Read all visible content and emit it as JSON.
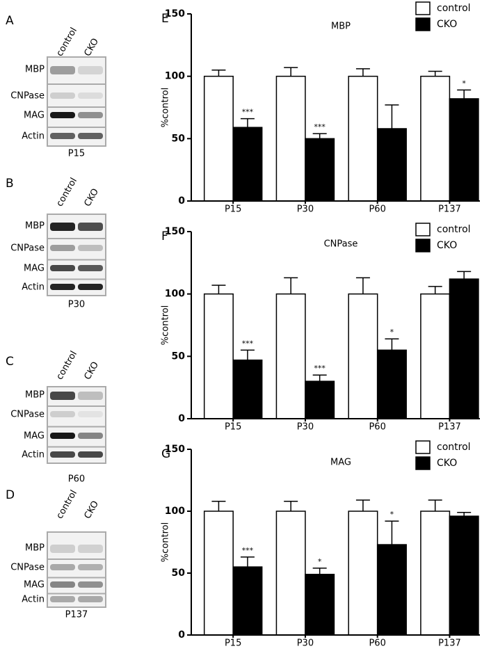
{
  "chart_data": [
    {
      "type": "bar",
      "panel": "E",
      "title": "MBP",
      "y_label": "%control",
      "categories": [
        "P15",
        "P30",
        "P60",
        "P137"
      ],
      "series": [
        {
          "name": "control",
          "color": "#ffffff",
          "values": [
            100,
            100,
            100,
            100
          ],
          "errors": [
            5,
            7,
            6,
            4
          ]
        },
        {
          "name": "CKO",
          "color": "#000000",
          "values": [
            59,
            50,
            58,
            82
          ],
          "errors": [
            7,
            4,
            19,
            7
          ],
          "annotations": [
            "***",
            "***",
            null,
            "*"
          ]
        }
      ],
      "ylim": [
        0,
        150
      ],
      "yticks": [
        0,
        50,
        100,
        150
      ]
    },
    {
      "type": "bar",
      "panel": "F",
      "title": "CNPase",
      "y_label": "%control",
      "categories": [
        "P15",
        "P30",
        "P60",
        "P137"
      ],
      "series": [
        {
          "name": "control",
          "color": "#ffffff",
          "values": [
            100,
            100,
            100,
            100
          ],
          "errors": [
            7,
            13,
            13,
            6
          ]
        },
        {
          "name": "CKO",
          "color": "#000000",
          "values": [
            47,
            30,
            55,
            112
          ],
          "errors": [
            8,
            5,
            9,
            6
          ],
          "annotations": [
            "***",
            "***",
            "*",
            null
          ]
        }
      ],
      "ylim": [
        0,
        150
      ],
      "yticks": [
        0,
        50,
        100,
        150
      ]
    },
    {
      "type": "bar",
      "panel": "G",
      "title": "MAG",
      "y_label": "%control",
      "categories": [
        "P15",
        "P30",
        "P60",
        "P137"
      ],
      "series": [
        {
          "name": "control",
          "color": "#ffffff",
          "values": [
            100,
            100,
            100,
            100
          ],
          "errors": [
            8,
            8,
            9,
            9
          ]
        },
        {
          "name": "CKO",
          "color": "#000000",
          "values": [
            55,
            49,
            73,
            96
          ],
          "errors": [
            8,
            5,
            19,
            3
          ],
          "annotations": [
            "***",
            "*",
            "*",
            null
          ]
        }
      ],
      "ylim": [
        0,
        150
      ],
      "yticks": [
        0,
        50,
        100,
        150
      ]
    }
  ],
  "blots": [
    {
      "panel": "A",
      "lanes": [
        "control",
        "CKO"
      ],
      "rows": [
        "MBP",
        "CNPase",
        "MAG",
        "Actin"
      ],
      "age": "P15"
    },
    {
      "panel": "B",
      "lanes": [
        "control",
        "CKO"
      ],
      "rows": [
        "MBP",
        "CNPase",
        "MAG",
        "Actin"
      ],
      "age": "P30"
    },
    {
      "panel": "C",
      "lanes": [
        "control",
        "CKO"
      ],
      "rows": [
        "MBP",
        "CNPase",
        "MAG",
        "Actin"
      ],
      "age": "P60"
    },
    {
      "panel": "D",
      "lanes": [
        "control",
        "CKO"
      ],
      "rows": [
        "MBP",
        "CNPase",
        "MAG",
        "Actin"
      ],
      "age": "P137"
    }
  ]
}
